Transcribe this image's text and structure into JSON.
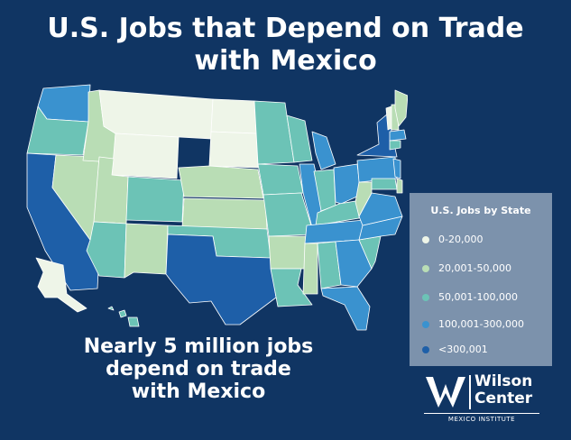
{
  "title": {
    "line1": "U.S. Jobs that Depend on Trade",
    "line2": "with Mexico"
  },
  "subtitle": {
    "line1": "Nearly 5 million jobs",
    "line2": "depend on trade",
    "line3": "with Mexico"
  },
  "legend": {
    "title": "U.S. Jobs by State",
    "items": [
      {
        "label": "0-20,000",
        "color": "#eef5e8"
      },
      {
        "label": "20,001-50,000",
        "color": "#b9ddb5"
      },
      {
        "label": "50,001-100,000",
        "color": "#6cc3b6"
      },
      {
        "label": "100,001-300,000",
        "color": "#3a92cf"
      },
      {
        "label": "<300,001",
        "color": "#1e5fa8"
      }
    ]
  },
  "logo": {
    "line1": "Wilson",
    "line2": "Center",
    "sub": "MEXICO INSTITUTE"
  },
  "states": [
    {
      "id": "WA",
      "cat": 3
    },
    {
      "id": "OR",
      "cat": 2
    },
    {
      "id": "CA",
      "cat": 4
    },
    {
      "id": "NV",
      "cat": 1
    },
    {
      "id": "ID",
      "cat": 1
    },
    {
      "id": "MT",
      "cat": 0
    },
    {
      "id": "WY",
      "cat": 0
    },
    {
      "id": "UT",
      "cat": 1
    },
    {
      "id": "AZ",
      "cat": 2
    },
    {
      "id": "CO",
      "cat": 2
    },
    {
      "id": "NM",
      "cat": 1
    },
    {
      "id": "ND",
      "cat": 0
    },
    {
      "id": "SD",
      "cat": 0
    },
    {
      "id": "NE",
      "cat": 1
    },
    {
      "id": "KS",
      "cat": 1
    },
    {
      "id": "OK",
      "cat": 2
    },
    {
      "id": "TX",
      "cat": 4
    },
    {
      "id": "MN",
      "cat": 2
    },
    {
      "id": "IA",
      "cat": 2
    },
    {
      "id": "MO",
      "cat": 2
    },
    {
      "id": "AR",
      "cat": 1
    },
    {
      "id": "LA",
      "cat": 2
    },
    {
      "id": "WI",
      "cat": 2
    },
    {
      "id": "IL",
      "cat": 3
    },
    {
      "id": "MI",
      "cat": 3
    },
    {
      "id": "IN",
      "cat": 2
    },
    {
      "id": "OH",
      "cat": 3
    },
    {
      "id": "KY",
      "cat": 2
    },
    {
      "id": "TN",
      "cat": 3
    },
    {
      "id": "MS",
      "cat": 1
    },
    {
      "id": "AL",
      "cat": 2
    },
    {
      "id": "GA",
      "cat": 3
    },
    {
      "id": "FL",
      "cat": 3
    },
    {
      "id": "SC",
      "cat": 2
    },
    {
      "id": "NC",
      "cat": 3
    },
    {
      "id": "VA",
      "cat": 3
    },
    {
      "id": "WV",
      "cat": 1
    },
    {
      "id": "PA",
      "cat": 3
    },
    {
      "id": "NY",
      "cat": 4
    },
    {
      "id": "VT",
      "cat": 0
    },
    {
      "id": "NH",
      "cat": 1
    },
    {
      "id": "ME",
      "cat": 1
    },
    {
      "id": "MA",
      "cat": 3
    },
    {
      "id": "CT",
      "cat": 2
    },
    {
      "id": "NJ",
      "cat": 3
    },
    {
      "id": "MD",
      "cat": 2
    },
    {
      "id": "DE",
      "cat": 1
    },
    {
      "id": "AK",
      "cat": 0
    },
    {
      "id": "HI",
      "cat": 2
    }
  ]
}
